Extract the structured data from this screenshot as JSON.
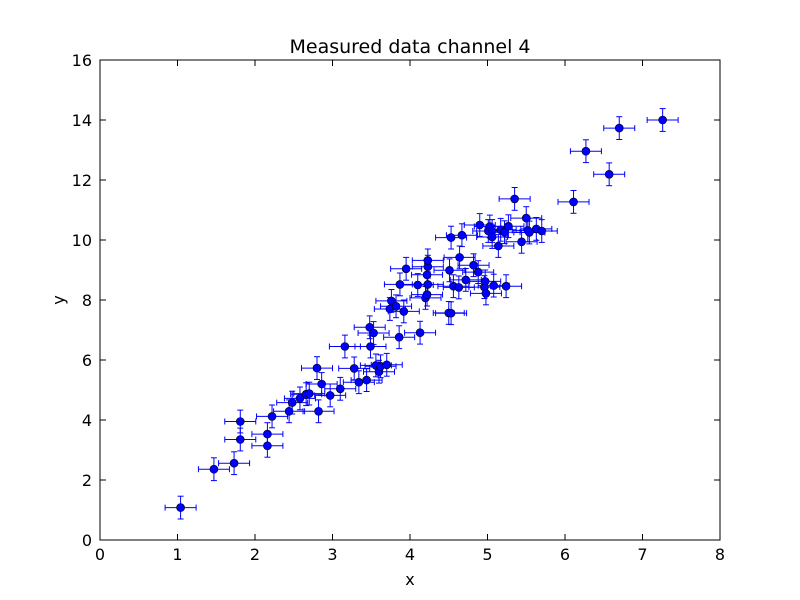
{
  "chart_data": {
    "type": "scatter",
    "title": "Measured data channel 4",
    "xlabel": "x",
    "ylabel": "y",
    "xlim": [
      0,
      8
    ],
    "ylim": [
      0,
      16
    ],
    "xticks": [
      0,
      1,
      2,
      3,
      4,
      5,
      6,
      7,
      8
    ],
    "yticks": [
      0,
      2,
      4,
      6,
      8,
      10,
      12,
      14,
      16
    ],
    "grid": false,
    "legend": false,
    "series": [
      {
        "color": "#0000ff",
        "marker": "circle",
        "error_bars": true,
        "x_error": 0.2,
        "y_error": 0.38,
        "points": [
          [
            1.04,
            1.08
          ],
          [
            1.47,
            2.36
          ],
          [
            1.73,
            2.56
          ],
          [
            1.81,
            3.95
          ],
          [
            1.81,
            3.35
          ],
          [
            2.16,
            3.53
          ],
          [
            2.16,
            3.14
          ],
          [
            2.22,
            4.12
          ],
          [
            2.44,
            4.29
          ],
          [
            2.48,
            4.58
          ],
          [
            2.58,
            4.72
          ],
          [
            2.66,
            4.86
          ],
          [
            2.7,
            4.88
          ],
          [
            2.8,
            5.73
          ],
          [
            2.82,
            4.29
          ],
          [
            2.86,
            5.2
          ],
          [
            2.97,
            4.82
          ],
          [
            3.1,
            5.04
          ],
          [
            3.16,
            6.45
          ],
          [
            3.28,
            5.72
          ],
          [
            3.34,
            5.26
          ],
          [
            3.44,
            5.33
          ],
          [
            3.48,
            7.09
          ],
          [
            3.49,
            6.45
          ],
          [
            3.53,
            6.9
          ],
          [
            3.56,
            5.82
          ],
          [
            3.6,
            5.61
          ],
          [
            3.62,
            5.79
          ],
          [
            3.7,
            5.84
          ],
          [
            3.74,
            7.7
          ],
          [
            3.76,
            7.97
          ],
          [
            3.82,
            7.79
          ],
          [
            3.86,
            6.76
          ],
          [
            3.87,
            8.52
          ],
          [
            3.92,
            7.62
          ],
          [
            3.95,
            9.04
          ],
          [
            4.1,
            8.5
          ],
          [
            4.13,
            6.91
          ],
          [
            4.2,
            8.07
          ],
          [
            4.22,
            8.18
          ],
          [
            4.22,
            8.84
          ],
          [
            4.23,
            9.11
          ],
          [
            4.23,
            9.32
          ],
          [
            4.23,
            8.52
          ],
          [
            4.5,
            7.57
          ],
          [
            4.51,
            8.99
          ],
          [
            4.53,
            10.08
          ],
          [
            4.53,
            7.56
          ],
          [
            4.56,
            8.46
          ],
          [
            4.63,
            8.42
          ],
          [
            4.64,
            9.42
          ],
          [
            4.67,
            10.16
          ],
          [
            4.72,
            8.67
          ],
          [
            4.82,
            9.16
          ],
          [
            4.88,
            8.93
          ],
          [
            4.9,
            10.5
          ],
          [
            4.96,
            8.43
          ],
          [
            4.97,
            8.62
          ],
          [
            4.98,
            8.22
          ],
          [
            5.01,
            10.3
          ],
          [
            5.03,
            10.45
          ],
          [
            5.06,
            10.3
          ],
          [
            5.06,
            10.1
          ],
          [
            5.08,
            8.48
          ],
          [
            5.14,
            9.8
          ],
          [
            5.17,
            10.34
          ],
          [
            5.22,
            10.26
          ],
          [
            5.24,
            8.46
          ],
          [
            5.27,
            10.46
          ],
          [
            5.35,
            11.37
          ],
          [
            5.44,
            9.94
          ],
          [
            5.5,
            10.73
          ],
          [
            5.52,
            10.32
          ],
          [
            5.54,
            10.25
          ],
          [
            5.63,
            10.37
          ],
          [
            5.7,
            10.3
          ],
          [
            6.11,
            11.27
          ],
          [
            6.27,
            12.96
          ],
          [
            6.57,
            12.19
          ],
          [
            6.7,
            13.73
          ],
          [
            7.26,
            14.0
          ]
        ]
      }
    ]
  }
}
